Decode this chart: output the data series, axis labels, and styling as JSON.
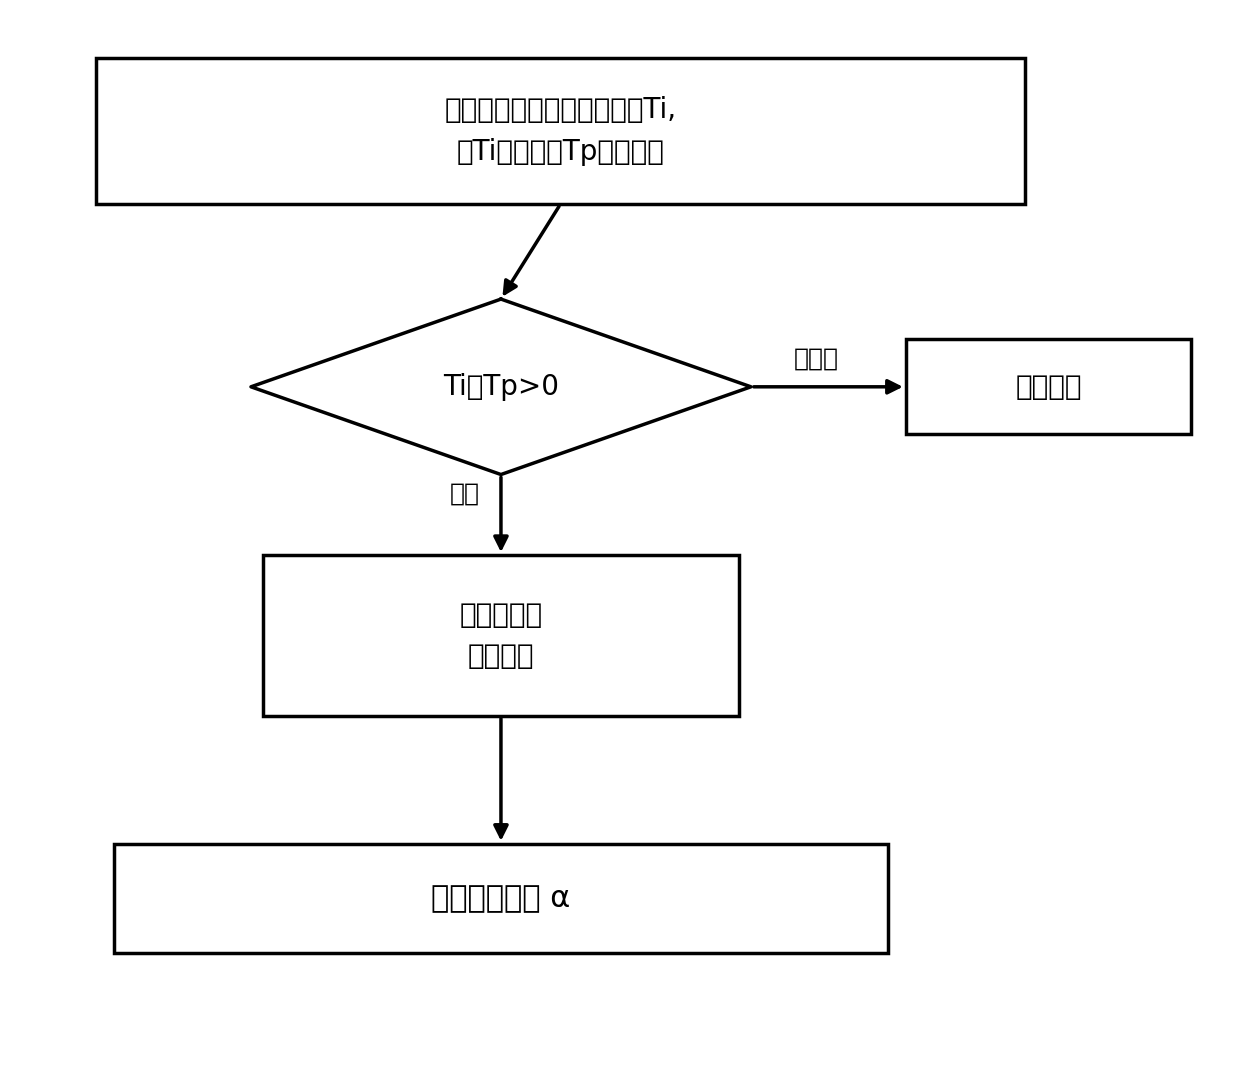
{
  "bg_color": "#ffffff",
  "line_color": "#000000",
  "text_color": "#000000",
  "box1_text": "启动准备阶段监控进水温度Ti,\n对Ti与预设值Tp进行判断",
  "diamond_text": "Ti－Tp>0",
  "box2_text": "需要触发高\n水温运行",
  "box3_text": "修订比例系数 α",
  "box4_text": "正常运行",
  "label_true": "成立",
  "label_false": "不成立",
  "figsize": [
    12.4,
    10.66
  ],
  "dpi": 100
}
